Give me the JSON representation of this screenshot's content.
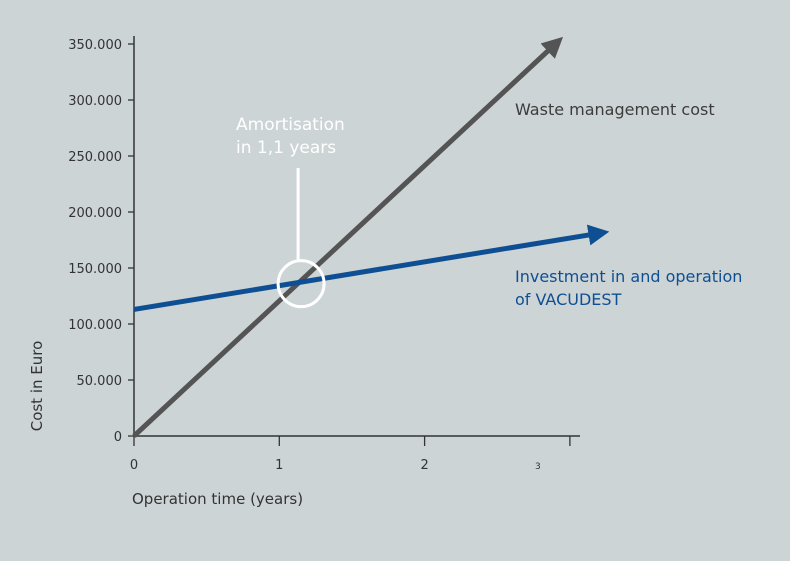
{
  "chart_data": {
    "type": "line",
    "xlabel": "Operation time (years)",
    "ylabel": "Cost in Euro",
    "xlim": [
      0,
      3
    ],
    "ylim": [
      0,
      350000
    ],
    "x_ticks": [
      {
        "value": 0,
        "label": "0"
      },
      {
        "value": 1,
        "label": "1"
      },
      {
        "value": 2,
        "label": "2"
      },
      {
        "value": 3,
        "label": "3"
      }
    ],
    "y_ticks": [
      {
        "value": 0,
        "label": "0"
      },
      {
        "value": 50000,
        "label": "50.000"
      },
      {
        "value": 100000,
        "label": "100.000"
      },
      {
        "value": 150000,
        "label": "150.000"
      },
      {
        "value": 200000,
        "label": "200.000"
      },
      {
        "value": 250000,
        "label": "250.000"
      },
      {
        "value": 300000,
        "label": "300.000"
      },
      {
        "value": 350000,
        "label": "350.000"
      }
    ],
    "series": [
      {
        "name": "Waste management cost",
        "color": "#545454",
        "points": [
          {
            "x": 0,
            "y": 0
          },
          {
            "x": 2.9,
            "y": 350000
          }
        ]
      },
      {
        "name": "Investment in and operation of VACUDEST",
        "name_lines": [
          "Investment in and operation",
          "of VACUDEST"
        ],
        "color": "#0e4f93",
        "points": [
          {
            "x": 0,
            "y": 113000
          },
          {
            "x": 3.2,
            "y": 181000
          }
        ]
      }
    ],
    "annotation": {
      "lines": [
        "Amortisation",
        "in 1,1 years"
      ],
      "x": 1.15,
      "y": 136000,
      "color": "#ffffff"
    },
    "grid": false,
    "legend": "inline labels"
  }
}
